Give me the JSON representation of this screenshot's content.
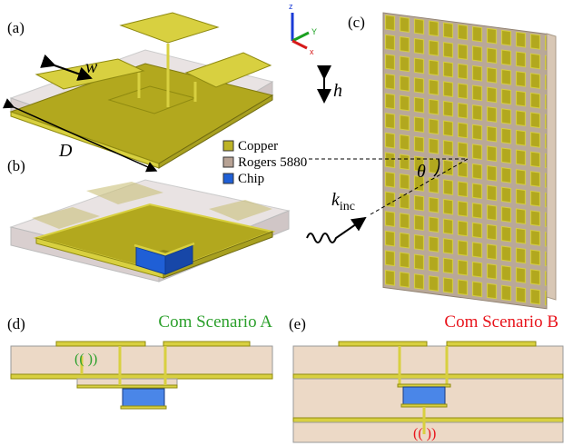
{
  "panels": {
    "a": "(a)",
    "b": "(b)",
    "c": "(c)",
    "d": "(d)",
    "e": "(e)"
  },
  "dimensions": {
    "w": "w",
    "h": "h",
    "D": "D",
    "theta": "θ",
    "k": "k",
    "k_sub": "inc"
  },
  "axes": {
    "z": "z",
    "y": "Y",
    "x": "x"
  },
  "legend": [
    {
      "label": "Copper",
      "color": "#bdb327"
    },
    {
      "label": "Rogers 5880",
      "color": "#b7a294"
    },
    {
      "label": "Chip",
      "color": "#1f5fd6"
    }
  ],
  "scenarios": [
    {
      "label": "Com Scenario A",
      "color": "#2ca02c"
    },
    {
      "label": "Com Scenario B",
      "color": "#e8141c"
    }
  ]
}
